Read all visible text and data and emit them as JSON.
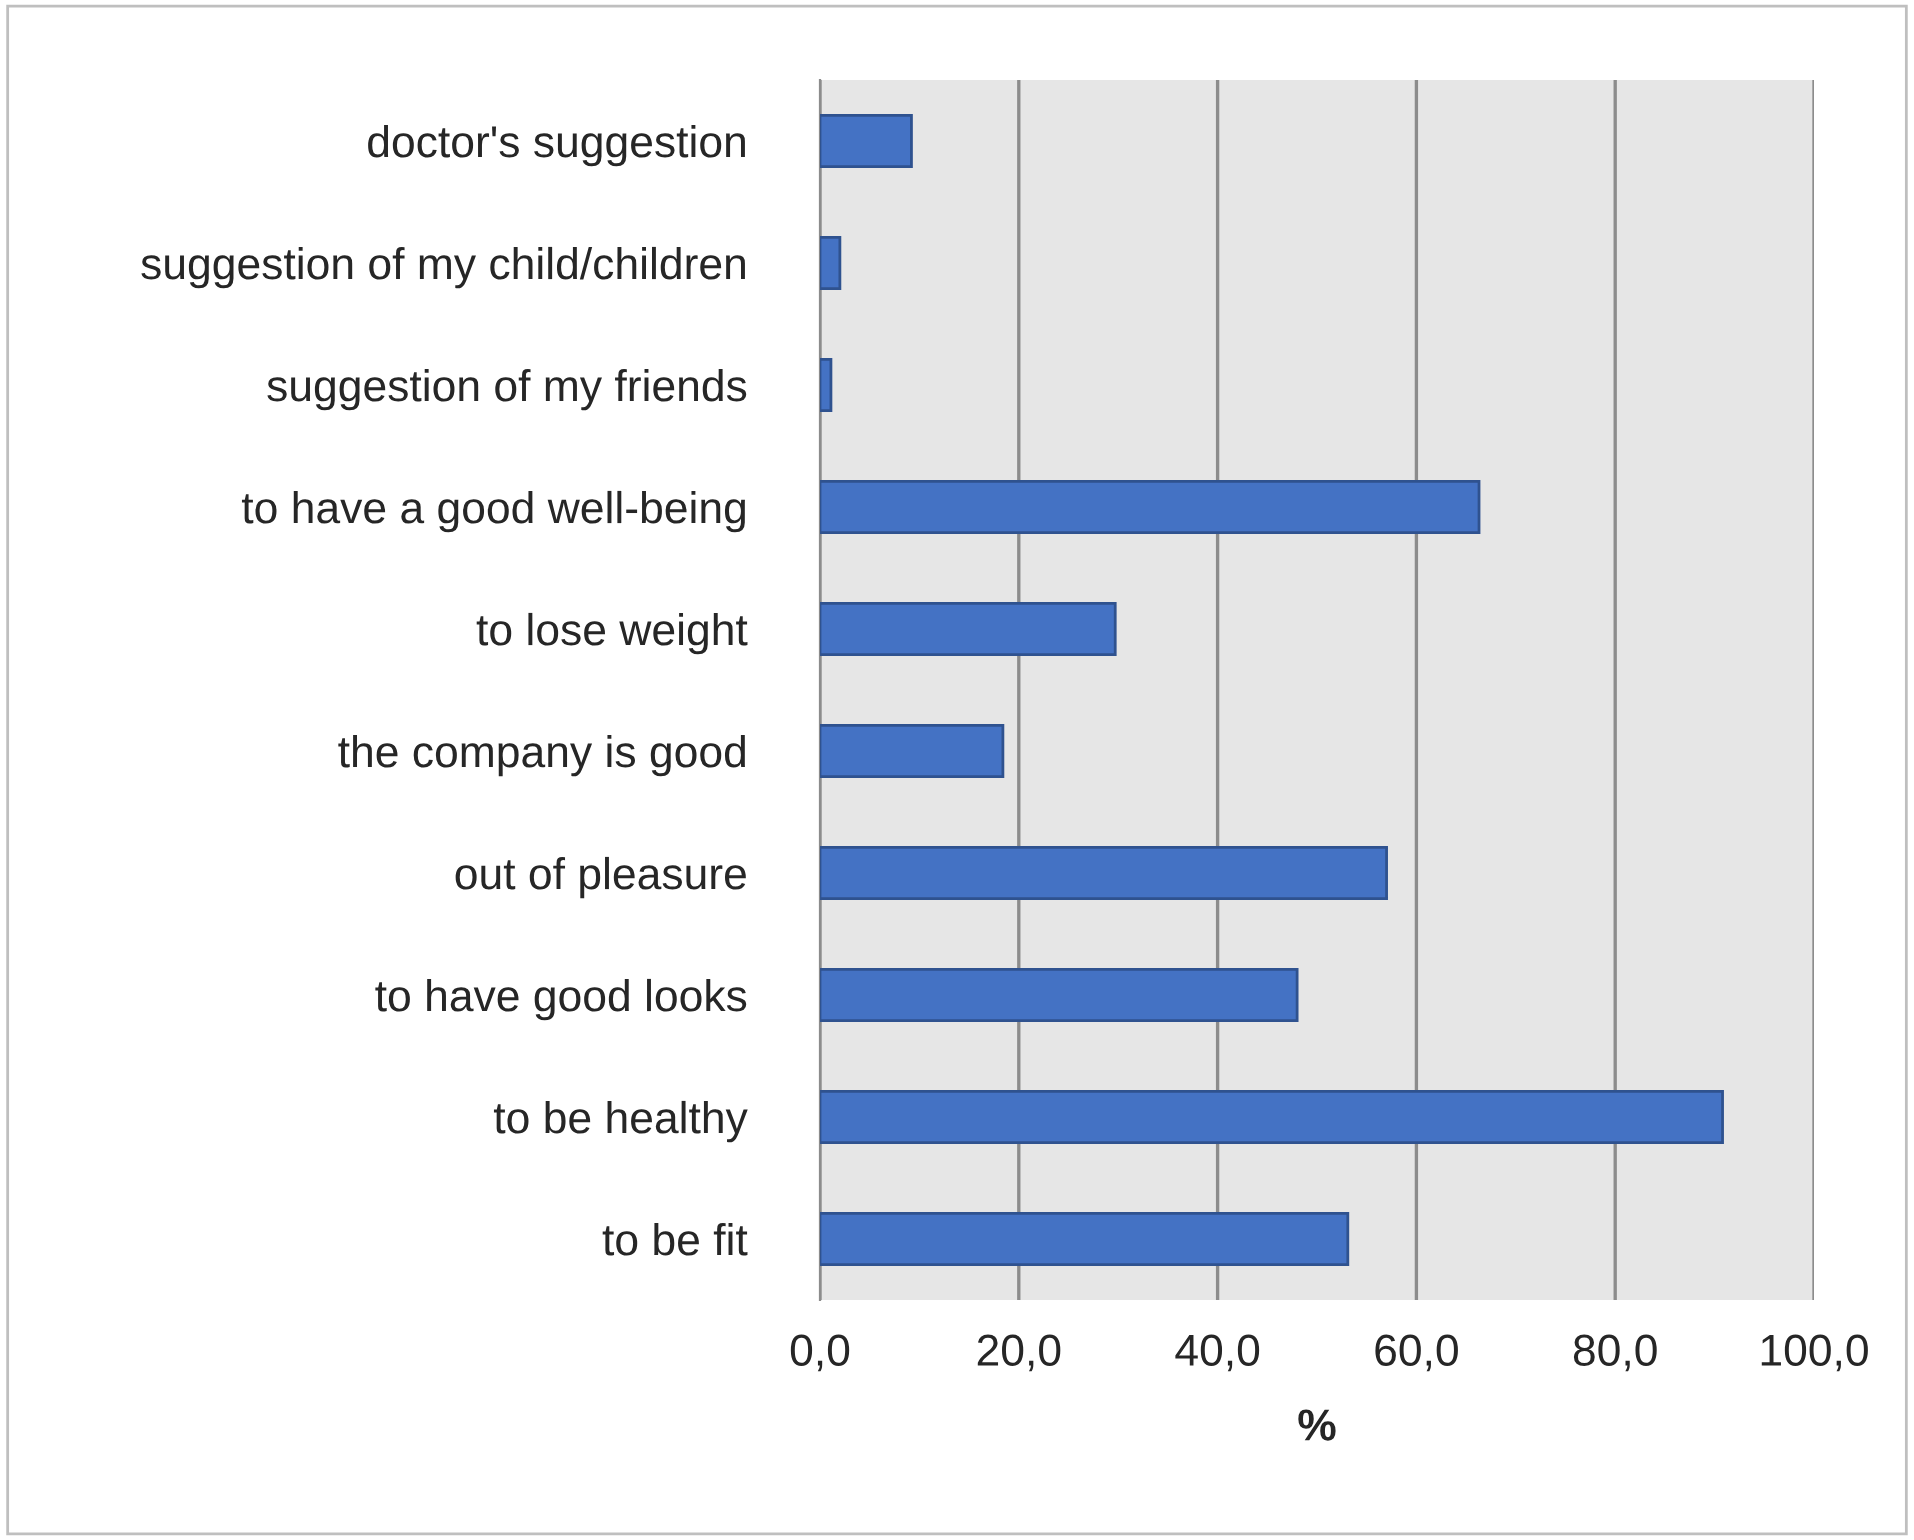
{
  "chart_data": {
    "type": "bar",
    "orientation": "horizontal",
    "xlabel": "%",
    "categories": [
      "doctor's suggestion",
      "suggestion of my child/children",
      "suggestion of my friends",
      "to have a good well-being",
      "to lose weight",
      "the company is good",
      "out of pleasure",
      "to have good looks",
      "to be healthy",
      "to be fit"
    ],
    "values": [
      9.2,
      2.0,
      1.1,
      66.3,
      29.7,
      18.4,
      57.0,
      48.0,
      90.8,
      53.1
    ],
    "color": "#4472c4",
    "xlim": [
      0,
      100
    ],
    "xticks": [
      {
        "value": 0,
        "label": "0,0"
      },
      {
        "value": 20,
        "label": "20,0"
      },
      {
        "value": 40,
        "label": "40,0"
      },
      {
        "value": 60,
        "label": "60,0"
      },
      {
        "value": 80,
        "label": "80,0"
      },
      {
        "value": 100,
        "label": "100,0"
      }
    ],
    "grid": "x",
    "legend": false
  }
}
